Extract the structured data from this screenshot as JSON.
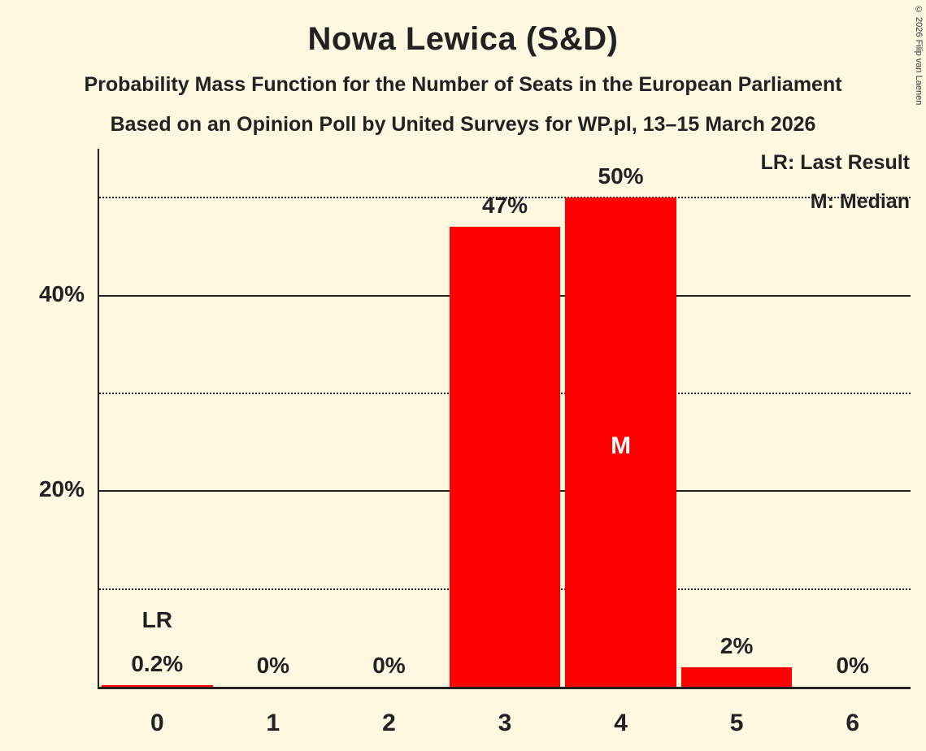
{
  "title": "Nowa Lewica (S&D)",
  "subtitle_line1": "Probability Mass Function for the Number of Seats in the European Parliament",
  "subtitle_line2": "Based on an Opinion Poll by United Surveys for WP.pl, 13–15 March 2026",
  "copyright": "© 2026 Filip van Laenen",
  "legend": {
    "last_result": "LR: Last Result",
    "median": "M: Median"
  },
  "colors": {
    "background": "#FFF8E1",
    "bar": "#FF0000",
    "text": "#222222"
  },
  "chart_data": {
    "type": "bar",
    "title": "Nowa Lewica (S&D)",
    "categories": [
      "0",
      "1",
      "2",
      "3",
      "4",
      "5",
      "6"
    ],
    "values": [
      0.2,
      0,
      0,
      47,
      50,
      2,
      0
    ],
    "value_labels": [
      "0.2%",
      "0%",
      "0%",
      "47%",
      "50%",
      "2%",
      "0%"
    ],
    "ylim": [
      0,
      55
    ],
    "yticks": [
      {
        "value": 20,
        "label": "20%"
      },
      {
        "value": 40,
        "label": "40%"
      }
    ],
    "gridlines_solid": [
      20,
      40
    ],
    "gridlines_dotted": [
      10,
      30,
      50
    ],
    "legend_position": "top-right",
    "annotations": {
      "last_result_category": "0",
      "last_result_label": "LR",
      "median_category": "4",
      "median_label": "M"
    }
  }
}
